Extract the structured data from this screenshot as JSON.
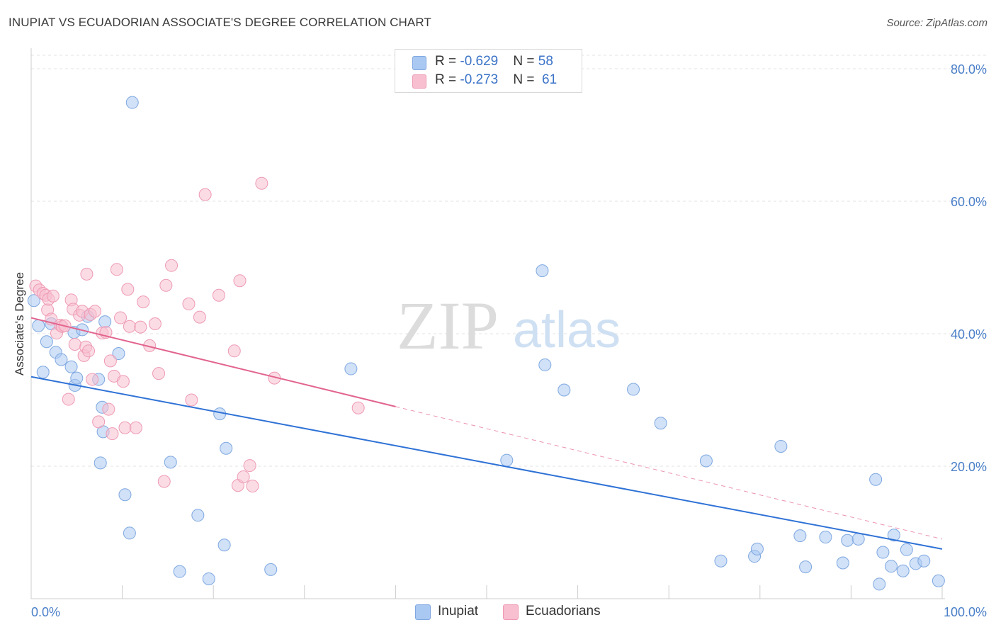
{
  "title": "INUPIAT VS ECUADORIAN ASSOCIATE'S DEGREE CORRELATION CHART",
  "source": "Source: ZipAtlas.com",
  "watermark": {
    "zip": "ZIP",
    "atlas": "atlas"
  },
  "legend": {
    "rows": [
      {
        "r_label": "R = ",
        "r_value": "-0.629",
        "n_label": "N = ",
        "n_value": "58",
        "color": "#a9c8f2",
        "edge": "#7fa8e0"
      },
      {
        "r_label": "R = ",
        "r_value": "-0.273",
        "n_label": "N = ",
        "n_value": " 61",
        "color": "#f7bfd0",
        "edge": "#ee9ab4"
      }
    ]
  },
  "bottom_legend": [
    {
      "label": "Inupiat",
      "color": "#a9c8f2",
      "edge": "#7fa8e0"
    },
    {
      "label": "Ecuadorians",
      "color": "#f7bfd0",
      "edge": "#ee9ab4"
    }
  ],
  "chart_data": {
    "type": "scatter",
    "title": "INUPIAT VS ECUADORIAN ASSOCIATE'S DEGREE CORRELATION CHART",
    "xlabel": "",
    "ylabel": "Associate's Degree",
    "xlim": [
      0,
      100
    ],
    "ylim": [
      0,
      82
    ],
    "x_ticks": [
      {
        "value": 0,
        "label": "0.0%"
      },
      {
        "value": 100,
        "label": "100.0%"
      }
    ],
    "y_ticks": [
      {
        "value": 20,
        "label": "20.0%"
      },
      {
        "value": 40,
        "label": "40.0%"
      },
      {
        "value": 60,
        "label": "60.0%"
      },
      {
        "value": 80,
        "label": "80.0%"
      }
    ],
    "grid": true,
    "legend_position": "top-center",
    "series": [
      {
        "name": "Inupiat",
        "color": "#a9c8f2",
        "edge": "#7fa8e0",
        "line_color": "#2f72d6",
        "trend": {
          "x": [
            0,
            100
          ],
          "y": [
            33.5,
            7.5
          ],
          "dashed_extension": null
        },
        "points": [
          [
            0.3,
            45
          ],
          [
            0.8,
            41.2
          ],
          [
            1.3,
            34.2
          ],
          [
            1.7,
            38.8
          ],
          [
            2.2,
            41.5
          ],
          [
            2.7,
            37.2
          ],
          [
            3.3,
            36.1
          ],
          [
            4.4,
            35
          ],
          [
            4.7,
            40.2
          ],
          [
            4.8,
            32.2
          ],
          [
            5.0,
            33.3
          ],
          [
            5.6,
            40.6
          ],
          [
            6.2,
            42.6
          ],
          [
            7.4,
            33.1
          ],
          [
            7.8,
            28.9
          ],
          [
            7.6,
            20.5
          ],
          [
            7.9,
            25.2
          ],
          [
            8.1,
            41.8
          ],
          [
            9.6,
            37
          ],
          [
            10.3,
            15.7
          ],
          [
            10.8,
            9.9
          ],
          [
            11.1,
            74.9
          ],
          [
            15.3,
            20.6
          ],
          [
            16.3,
            4.1
          ],
          [
            18.3,
            12.6
          ],
          [
            19.5,
            3
          ],
          [
            20.7,
            27.9
          ],
          [
            21.2,
            8.1
          ],
          [
            21.4,
            22.7
          ],
          [
            26.3,
            4.4
          ],
          [
            35.1,
            34.7
          ],
          [
            52.2,
            20.9
          ],
          [
            56.1,
            49.5
          ],
          [
            56.4,
            35.3
          ],
          [
            58.5,
            31.5
          ],
          [
            66.1,
            31.6
          ],
          [
            69.1,
            26.5
          ],
          [
            74.1,
            20.8
          ],
          [
            75.7,
            5.7
          ],
          [
            79.4,
            6.4
          ],
          [
            79.7,
            7.5
          ],
          [
            82.3,
            23
          ],
          [
            84.4,
            9.5
          ],
          [
            85.0,
            4.8
          ],
          [
            87.2,
            9.3
          ],
          [
            89.1,
            5.4
          ],
          [
            89.6,
            8.8
          ],
          [
            90.8,
            9
          ],
          [
            92.7,
            18
          ],
          [
            93.1,
            2.2
          ],
          [
            93.5,
            7
          ],
          [
            94.4,
            4.9
          ],
          [
            94.7,
            9.6
          ],
          [
            95.7,
            4.2
          ],
          [
            96.1,
            7.4
          ],
          [
            97.1,
            5.3
          ],
          [
            98.0,
            5.7
          ],
          [
            99.6,
            2.7
          ]
        ]
      },
      {
        "name": "Ecuadorians",
        "color": "#f7bfd0",
        "edge": "#ee9ab4",
        "line_color": "#e2648e",
        "trend": {
          "x": [
            0,
            40
          ],
          "y": [
            42.4,
            29
          ],
          "dashed_extension": {
            "x": [
              40,
              100
            ],
            "y": [
              29,
              9
            ]
          }
        },
        "points": [
          [
            0.5,
            47.2
          ],
          [
            0.9,
            46.6
          ],
          [
            1.3,
            46.1
          ],
          [
            1.6,
            45.8
          ],
          [
            1.8,
            43.6
          ],
          [
            1.9,
            45.2
          ],
          [
            2.2,
            42.2
          ],
          [
            2.4,
            45.7
          ],
          [
            2.8,
            40.1
          ],
          [
            3.2,
            41.3
          ],
          [
            3.4,
            41.1
          ],
          [
            3.7,
            41.2
          ],
          [
            4.1,
            30.1
          ],
          [
            4.4,
            45.1
          ],
          [
            4.6,
            43.7
          ],
          [
            4.8,
            38.4
          ],
          [
            5.3,
            42.8
          ],
          [
            5.6,
            43.4
          ],
          [
            5.8,
            36.7
          ],
          [
            6.0,
            38
          ],
          [
            6.1,
            49
          ],
          [
            6.3,
            37.4
          ],
          [
            6.5,
            42.9
          ],
          [
            6.7,
            33.1
          ],
          [
            7.0,
            43.4
          ],
          [
            7.4,
            26.7
          ],
          [
            7.8,
            40.1
          ],
          [
            8.2,
            40.2
          ],
          [
            8.5,
            28.6
          ],
          [
            8.7,
            35.9
          ],
          [
            8.9,
            24.9
          ],
          [
            9.1,
            33.6
          ],
          [
            9.4,
            49.7
          ],
          [
            9.8,
            42.4
          ],
          [
            10.1,
            32.8
          ],
          [
            10.3,
            25.8
          ],
          [
            10.6,
            46.7
          ],
          [
            10.8,
            41.1
          ],
          [
            11.5,
            25.8
          ],
          [
            12.0,
            41
          ],
          [
            12.3,
            44.8
          ],
          [
            13.0,
            38.2
          ],
          [
            13.6,
            41.5
          ],
          [
            14.0,
            34
          ],
          [
            14.6,
            17.7
          ],
          [
            14.8,
            47.3
          ],
          [
            15.4,
            50.3
          ],
          [
            17.3,
            44.5
          ],
          [
            17.6,
            30
          ],
          [
            18.5,
            42.5
          ],
          [
            19.1,
            61
          ],
          [
            20.6,
            45.8
          ],
          [
            22.3,
            37.4
          ],
          [
            22.7,
            17.1
          ],
          [
            22.9,
            48
          ],
          [
            23.3,
            18.4
          ],
          [
            24.0,
            20.1
          ],
          [
            24.3,
            17
          ],
          [
            25.3,
            62.7
          ],
          [
            26.7,
            33.3
          ],
          [
            35.9,
            28.8
          ]
        ]
      }
    ]
  }
}
